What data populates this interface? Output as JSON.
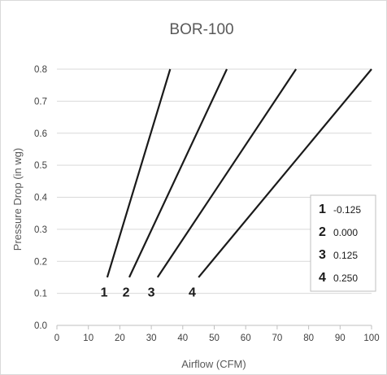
{
  "chart_data": {
    "type": "line",
    "title": "BOR-100",
    "xlabel": "Airflow (CFM)",
    "ylabel": "Pressure Drop (in wg)",
    "xlim": [
      0,
      100
    ],
    "ylim": [
      0,
      0.8
    ],
    "x_ticks": [
      "0",
      "10",
      "20",
      "30",
      "40",
      "50",
      "60",
      "70",
      "80",
      "90",
      "100"
    ],
    "y_ticks": [
      "0.0",
      "0.1",
      "0.2",
      "0.3",
      "0.4",
      "0.5",
      "0.6",
      "0.7",
      "0.8"
    ],
    "grid": true,
    "series": [
      {
        "name": "1",
        "x": [
          16.0,
          36.0
        ],
        "y": [
          0.15,
          0.8
        ]
      },
      {
        "name": "2",
        "x": [
          23.0,
          54.0
        ],
        "y": [
          0.15,
          0.8
        ]
      },
      {
        "name": "3",
        "x": [
          32.0,
          76.0
        ],
        "y": [
          0.15,
          0.8
        ]
      },
      {
        "name": "4",
        "x": [
          45.0,
          100.0
        ],
        "y": [
          0.15,
          0.8
        ]
      }
    ],
    "line_labels": [
      {
        "text": "1",
        "x": 15.0,
        "y": 0.105
      },
      {
        "text": "2",
        "x": 22.0,
        "y": 0.105
      },
      {
        "text": "3",
        "x": 30.0,
        "y": 0.105
      },
      {
        "text": "4",
        "x": 43.0,
        "y": 0.105
      }
    ],
    "legend": {
      "placement": "right",
      "entries": [
        {
          "label": "1",
          "value": "-0.125"
        },
        {
          "label": "2",
          "value": "0.000"
        },
        {
          "label": "3",
          "value": "0.125"
        },
        {
          "label": "4",
          "value": "0.250"
        }
      ]
    },
    "colors": {
      "line": "#1a1a1a",
      "grid": "#d9d9d9",
      "axis": "#bfbfbf",
      "border": "#bfbfbf"
    }
  }
}
